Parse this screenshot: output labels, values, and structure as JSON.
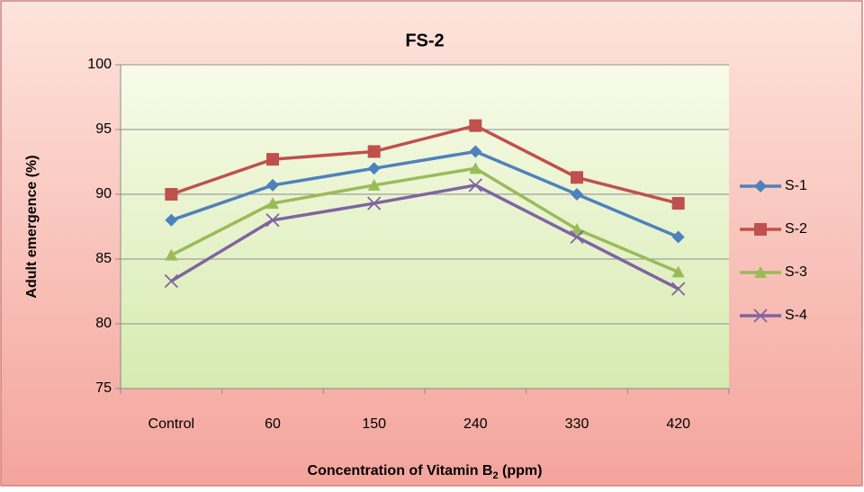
{
  "chart_data": {
    "type": "line",
    "title": "FS-2",
    "x_label": {
      "text": "Concentration of Vitamin B",
      "subscript": "2",
      "suffix": " (ppm)"
    },
    "y_label": "Adult emergence (%)",
    "categories": [
      "Control",
      "60",
      "150",
      "240",
      "330",
      "420"
    ],
    "series": [
      {
        "name": "S-1",
        "color": "#4f81bd",
        "marker": "diamond",
        "values": [
          88,
          90.7,
          92,
          93.3,
          90,
          86.7
        ]
      },
      {
        "name": "S-2",
        "color": "#c0504d",
        "marker": "square",
        "values": [
          90,
          92.7,
          93.3,
          95.3,
          91.3,
          89.3
        ]
      },
      {
        "name": "S-3",
        "color": "#9bbb59",
        "marker": "triangle",
        "values": [
          85.3,
          89.3,
          90.7,
          92,
          87.3,
          84
        ]
      },
      {
        "name": "S-4",
        "color": "#8064a2",
        "marker": "x",
        "values": [
          83.3,
          88,
          89.3,
          90.7,
          86.7,
          82.7
        ]
      }
    ],
    "ylim": [
      75,
      100
    ],
    "yticks": [
      75,
      80,
      85,
      90,
      95,
      100
    ],
    "grid": true,
    "legend": "right"
  }
}
